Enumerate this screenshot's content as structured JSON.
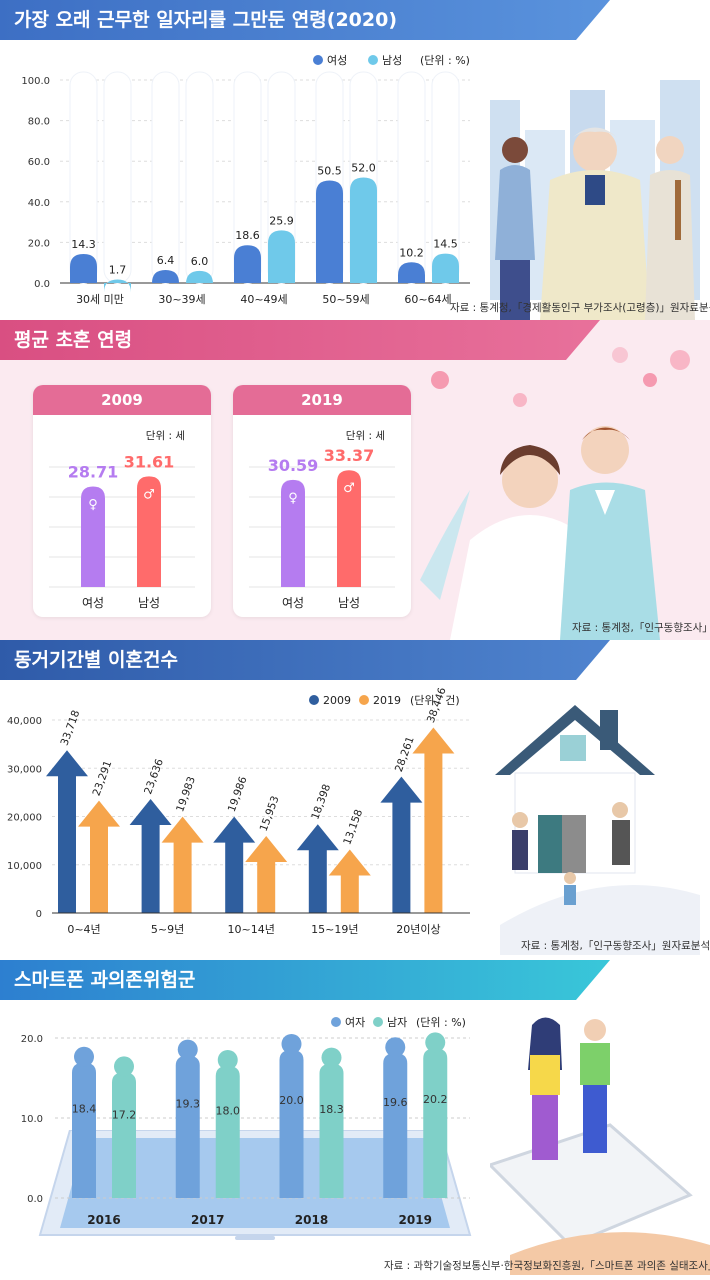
{
  "sections": {
    "s1": {
      "title": "가장 오래 근무한 일자리를 그만둔 연령(2020)",
      "source": "자료 : 통계청,「경제활동인구 부가조사(고령층)」원자료분석"
    },
    "s2": {
      "title": "평균 초혼 연령",
      "source": "자료 : 통계청,「인구동향조사」"
    },
    "s3": {
      "title": "동거기간별 이혼건수",
      "source": "자료 : 통계청,「인구동향조사」원자료분석"
    },
    "s4": {
      "title": "스마트폰 과의존위험군",
      "source": "자료 : 과학기술정보통신부·한국정보화진흥원,「스마트폰 과의존 실태조사」"
    }
  },
  "chart_data": [
    {
      "type": "bar",
      "title": "가장 오래 근무한 일자리를 그만둔 연령(2020)",
      "unit": "(단위 : %)",
      "categories": [
        "30세 미만",
        "30~39세",
        "40~49세",
        "50~59세",
        "60~64세"
      ],
      "series": [
        {
          "name": "여성",
          "values": [
            14.3,
            6.4,
            18.6,
            50.5,
            10.2
          ],
          "color": "#4a7fd4"
        },
        {
          "name": "남성",
          "values": [
            1.7,
            6.0,
            25.9,
            52.0,
            14.5
          ],
          "color": "#6fc9ea"
        }
      ],
      "yticks": [
        "0.0",
        "20.0",
        "40.0",
        "60.0",
        "80.0",
        "100.0"
      ],
      "ylim": [
        0,
        100
      ]
    },
    {
      "type": "bar",
      "title": "평균 초혼 연령",
      "panels": [
        {
          "year": "2009",
          "unit": "단위 : 세",
          "categories": [
            "여성",
            "남성"
          ],
          "values": [
            28.71,
            31.61
          ]
        },
        {
          "year": "2019",
          "unit": "단위 : 세",
          "categories": [
            "여성",
            "남성"
          ],
          "values": [
            30.59,
            33.37
          ]
        }
      ],
      "colors": {
        "여성": "#b57cf0",
        "남성": "#ff6b6b"
      }
    },
    {
      "type": "bar",
      "title": "동거기간별 이혼건수",
      "unit": "(단위 : 건)",
      "categories": [
        "0~4년",
        "5~9년",
        "10~14년",
        "15~19년",
        "20년이상"
      ],
      "series": [
        {
          "name": "2009",
          "values": [
            33718,
            23636,
            19986,
            18398,
            28261
          ],
          "labels": [
            "33,718",
            "23,636",
            "19,986",
            "18,398",
            "28,261"
          ],
          "color": "#2f5e9e"
        },
        {
          "name": "2019",
          "values": [
            23291,
            19983,
            15953,
            13158,
            38446
          ],
          "labels": [
            "23,291",
            "19,983",
            "15,953",
            "13,158",
            "38,446"
          ],
          "color": "#f6a54c"
        }
      ],
      "yticks": [
        "0",
        "10,000",
        "20,000",
        "30,000",
        "40,000"
      ],
      "ylim": [
        0,
        40000
      ]
    },
    {
      "type": "bar",
      "title": "스마트폰 과의존위험군",
      "unit": "(단위 : %)",
      "categories": [
        "2016",
        "2017",
        "2018",
        "2019"
      ],
      "series": [
        {
          "name": "여자",
          "values": [
            18.4,
            19.3,
            20.0,
            19.6
          ],
          "color": "#6fa2db"
        },
        {
          "name": "남자",
          "values": [
            17.2,
            18.0,
            18.3,
            20.2
          ],
          "color": "#7fd0c8"
        }
      ],
      "yticks": [
        "0.0",
        "10.0",
        "20.0"
      ],
      "ylim": [
        0,
        20
      ]
    }
  ]
}
